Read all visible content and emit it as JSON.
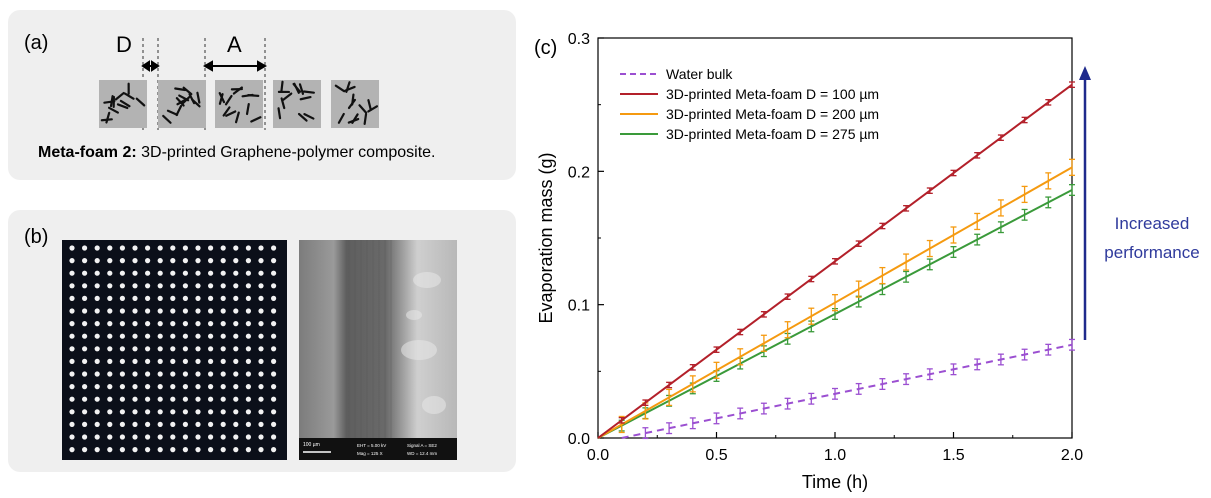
{
  "panel_a": {
    "label": "(a)",
    "dim_d": "D",
    "dim_a": "A",
    "caption_bold": "Meta-foam 2:",
    "caption_rest": " 3D-printed Graphene-polymer composite."
  },
  "panel_b": {
    "label": "(b)",
    "sem_scale": "100 µm",
    "sem_info_1": "EHT = 5.00 kV",
    "sem_info_2": "Mag = 125 X",
    "sem_info_3": "Signal A = SE2",
    "sem_info_4": "WD = 12.4 mm"
  },
  "chart_data": {
    "type": "line",
    "panel_label": "(c)",
    "xlabel": "Time (h)",
    "ylabel": "Evaporation mass (g)",
    "xlim": [
      0,
      2.0
    ],
    "ylim": [
      0,
      0.3
    ],
    "xticks": [
      "0.0",
      "0.5",
      "1.0",
      "1.5",
      "2.0"
    ],
    "yticks": [
      "0.0",
      "0.1",
      "0.2",
      "0.3"
    ],
    "legend_position": "top-left",
    "annotation_line1": "Increased",
    "annotation_line2": "performance",
    "series": [
      {
        "name": "Water bulk",
        "color": "#9b4fd1",
        "dashed": true,
        "x0": 0.1,
        "slope": 0.0368,
        "err": 0.004
      },
      {
        "name": "3D-printed Meta-foam D = 100 µm",
        "color": "#b3202a",
        "dashed": false,
        "x0": 0.0,
        "slope": 0.1325,
        "err": 0.002
      },
      {
        "name": "3D-printed Meta-foam D = 200 µm",
        "color": "#f59a10",
        "dashed": false,
        "x0": 0.0,
        "slope": 0.1015,
        "err": 0.006
      },
      {
        "name": "3D-printed Meta-foam D = 275 µm",
        "color": "#3a9a3a",
        "dashed": false,
        "x0": 0.0,
        "slope": 0.093,
        "err": 0.004
      }
    ]
  }
}
